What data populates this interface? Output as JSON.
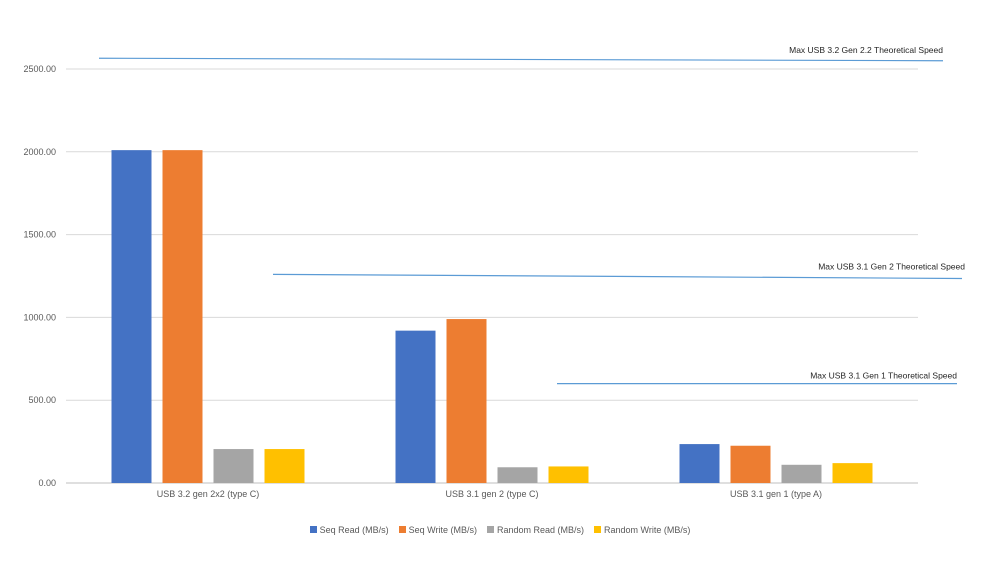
{
  "chart_data": {
    "type": "bar",
    "title": "",
    "xlabel": "",
    "ylabel": "",
    "ylim": [
      0,
      2500
    ],
    "yticks": [
      "0.00",
      "500.00",
      "1000.00",
      "1500.00",
      "2000.00",
      "2500.00"
    ],
    "grid": true,
    "legend_position": "bottom",
    "categories": [
      "USB 3.2 gen 2x2 (type C)",
      "USB 3.1 gen 2 (type C)",
      "USB 3.1 gen 1 (type A)"
    ],
    "series": [
      {
        "name": "Seq Read (MB/s)",
        "color": "#4472C4",
        "values": [
          2010,
          920,
          235
        ]
      },
      {
        "name": "Seq Write (MB/s)",
        "color": "#ED7D31",
        "values": [
          2010,
          990,
          225
        ]
      },
      {
        "name": "Random Read (MB/s)",
        "color": "#A5A5A5",
        "values": [
          205,
          95,
          110
        ]
      },
      {
        "name": "Random Write (MB/s)",
        "color": "#FFC000",
        "values": [
          205,
          100,
          120
        ]
      }
    ],
    "reference_lines": [
      {
        "label": "Max USB 3.2 Gen 2.2 Theoretical Speed",
        "y_start": 2565,
        "y_end": 2550,
        "color": "#5B9BD5"
      },
      {
        "label": "Max USB 3.1 Gen 2 Theoretical Speed",
        "y_start": 1260,
        "y_end": 1235,
        "color": "#5B9BD5"
      },
      {
        "label": "Max USB 3.1 Gen 1 Theoretical Speed",
        "y_start": 600,
        "y_end": 600,
        "color": "#5B9BD5"
      }
    ]
  }
}
